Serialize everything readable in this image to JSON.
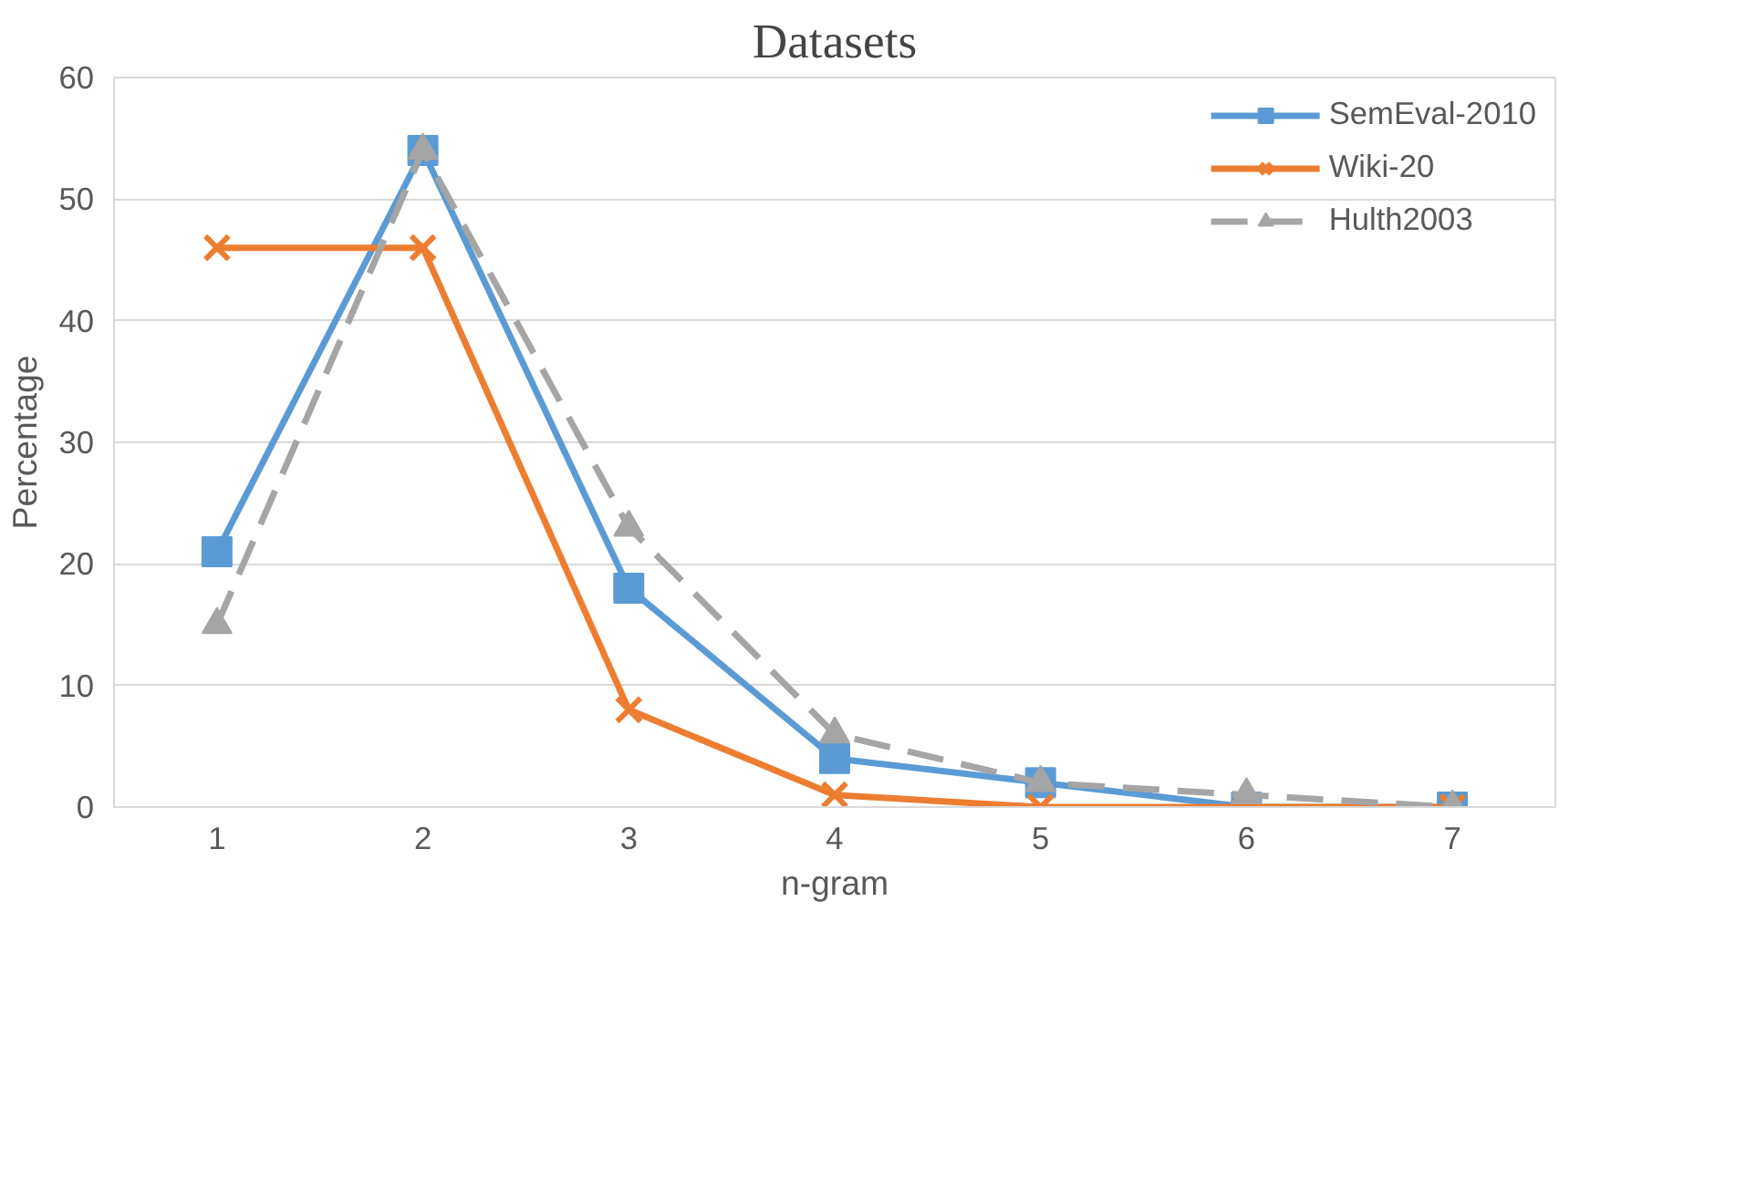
{
  "chart_data": {
    "type": "line",
    "title": "Datasets",
    "xlabel": "n-gram",
    "ylabel": "Percentage",
    "categories": [
      "1",
      "2",
      "3",
      "4",
      "5",
      "6",
      "7"
    ],
    "ylim": [
      0,
      60
    ],
    "yticks": [
      0,
      10,
      20,
      30,
      40,
      50,
      60
    ],
    "grid": "y",
    "legend": "top right",
    "series": [
      {
        "name": "SemEval-2010",
        "color": "#5b9bd5",
        "marker": "square",
        "line_style": "solid",
        "values": [
          21,
          54,
          18,
          4,
          2,
          0,
          0
        ]
      },
      {
        "name": "Wiki-20",
        "color": "#ed7d31",
        "marker": "cross",
        "line_style": "solid",
        "values": [
          46,
          46,
          8,
          1,
          0,
          0,
          0
        ]
      },
      {
        "name": "Hulth2003",
        "color": "#a5a5a5",
        "marker": "triangle",
        "line_style": "dashed",
        "values": [
          15,
          54,
          23,
          6,
          2,
          1,
          0
        ]
      }
    ]
  }
}
